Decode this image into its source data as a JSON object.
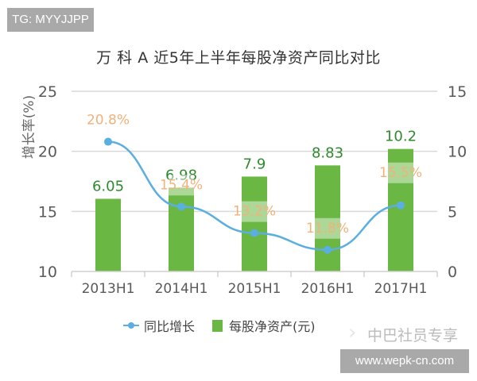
{
  "badge": {
    "tg": "TG: MYYJJPP"
  },
  "title": "万 科 A  近5年上半年每股净资产同比对比",
  "watermark": {
    "brand": "中巴社员专享",
    "url": "www.wepk-cn.com"
  },
  "legend": {
    "line_label": "同比增长",
    "bar_label": "每股净资产(元)"
  },
  "colors": {
    "bar": "#6ab743",
    "line": "#5aaee0",
    "bar_label": "#2e8b2e",
    "line_label": "#f0b27a",
    "grid": "#d9d9d9",
    "axis_text": "#595959"
  },
  "chart_data": {
    "type": "bar+line",
    "title": "万 科 A  近5年上半年每股净资产同比对比",
    "categories": [
      "2013H1",
      "2014H1",
      "2015H1",
      "2016H1",
      "2017H1"
    ],
    "series": [
      {
        "name": "每股净资产(元)",
        "type": "bar",
        "axis": "right",
        "values": [
          6.05,
          6.98,
          7.9,
          8.83,
          10.2
        ],
        "labels": [
          "6.05",
          "6.98",
          "7.9",
          "8.83",
          "10.2"
        ]
      },
      {
        "name": "同比增长",
        "type": "line",
        "axis": "left",
        "values": [
          20.8,
          15.4,
          13.2,
          11.8,
          15.5
        ],
        "labels": [
          "20.8%",
          "15.4%",
          "13.2%",
          "11.8%",
          "15.5%"
        ]
      }
    ],
    "ylabel": "增长率(%)",
    "ylim_left": [
      10,
      25
    ],
    "yticks_left": [
      "25",
      "20",
      "15",
      "10"
    ],
    "ylim_right": [
      0,
      15
    ],
    "yticks_right": [
      "15",
      "10",
      "5",
      "0"
    ],
    "grid": true,
    "legend_position": "bottom"
  }
}
